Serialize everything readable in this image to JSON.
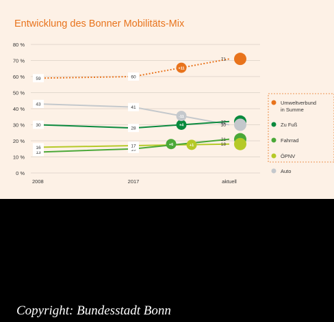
{
  "copyright": "Copyright: Bundesstadt Bonn",
  "colors": {
    "background": "#fdf1e6",
    "title": "#e8731c",
    "grid": "#d9cfc4",
    "axis_text": "#333333"
  },
  "chart_data": {
    "type": "line",
    "title": "Entwicklung des Bonner Mobilitäts-Mix",
    "xlabel": "",
    "ylabel": "",
    "x": [
      "2008",
      "2017",
      "aktuell"
    ],
    "yticks": [
      "0 %",
      "10 %",
      "20 %",
      "30 %",
      "40 %",
      "50 %",
      "60 %",
      "70 %",
      "80 %"
    ],
    "ylim": [
      0,
      80
    ],
    "grid": true,
    "legend_position": "right",
    "series": [
      {
        "name": "Umweltverbund in Summe",
        "name_lines": [
          "Umweltverbund",
          "in Summe"
        ],
        "values": [
          59,
          60,
          71
        ],
        "color": "#e8731c",
        "style": "dotted",
        "change_label": "+11",
        "end_icon": "sigma"
      },
      {
        "name": "Zu Fuß",
        "values": [
          30,
          28,
          32
        ],
        "color": "#0a8a3e",
        "style": "solid",
        "change_label": "+4",
        "end_icon": "walking-person"
      },
      {
        "name": "Fahrrad",
        "values": [
          13,
          15,
          21
        ],
        "color": "#4aa838",
        "style": "solid",
        "change_label": "+6",
        "end_icon": "bicycle"
      },
      {
        "name": "ÖPNV",
        "values": [
          16,
          17,
          18
        ],
        "color": "#b5c927",
        "style": "solid",
        "change_label": "+1",
        "end_icon": "bus-stop"
      },
      {
        "name": "Auto",
        "values": [
          43,
          41,
          30
        ],
        "color": "#c4c8cc",
        "style": "solid",
        "change_label": "-11",
        "end_icon": "car"
      }
    ]
  }
}
